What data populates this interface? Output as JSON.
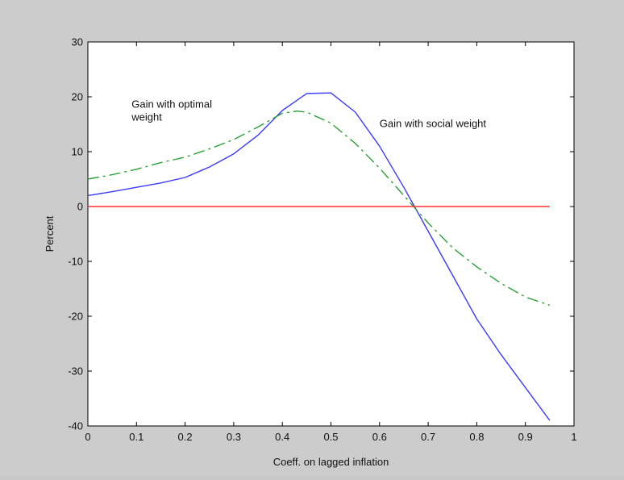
{
  "chart_data": {
    "type": "line",
    "title": "",
    "xlabel": "Coeff. on lagged inflation",
    "ylabel": "Percent",
    "xlim": [
      0,
      1
    ],
    "ylim": [
      -40,
      30
    ],
    "xticks": [
      "0",
      "0.1",
      "0.2",
      "0.3",
      "0.4",
      "0.5",
      "0.6",
      "0.7",
      "0.8",
      "0.9",
      "1"
    ],
    "yticks": [
      "30",
      "20",
      "10",
      "0",
      "-10",
      "-20",
      "-30",
      "-40"
    ],
    "grid": false,
    "legend": "none",
    "annotations": [
      {
        "lines": [
          "Gain with optimal",
          "weight"
        ],
        "x": 0.09,
        "y": 18
      },
      {
        "lines": [
          "Gain with social weight"
        ],
        "x": 0.6,
        "y": 14.5
      }
    ],
    "series": [
      {
        "color": "#3b3bff",
        "style": "solid",
        "x": [
          0,
          0.05,
          0.1,
          0.15,
          0.2,
          0.25,
          0.3,
          0.35,
          0.4,
          0.45,
          0.5,
          0.55,
          0.6,
          0.65,
          0.7,
          0.75,
          0.8,
          0.85,
          0.9,
          0.95
        ],
        "y": [
          2,
          2.7,
          3.5,
          4.3,
          5.3,
          7.2,
          9.6,
          13,
          17.5,
          20.6,
          20.7,
          17.2,
          11,
          3.5,
          -4.5,
          -12.5,
          -20.5,
          -27,
          -33,
          -39
        ]
      },
      {
        "color": "#2e9e3a",
        "style": "dashdot",
        "x": [
          0,
          0.05,
          0.1,
          0.15,
          0.2,
          0.25,
          0.3,
          0.35,
          0.4,
          0.43,
          0.45,
          0.5,
          0.55,
          0.6,
          0.65,
          0.7,
          0.75,
          0.8,
          0.85,
          0.9,
          0.95
        ],
        "y": [
          5,
          5.8,
          6.8,
          8,
          9,
          10.5,
          12.2,
          14.5,
          17,
          17.4,
          17.2,
          15.2,
          11.5,
          7,
          2,
          -3,
          -7.5,
          -11,
          -14,
          -16.5,
          -18
        ]
      },
      {
        "color": "#ff3030",
        "style": "solid",
        "x": [
          0,
          0.95
        ],
        "y": [
          0,
          0
        ]
      }
    ]
  }
}
